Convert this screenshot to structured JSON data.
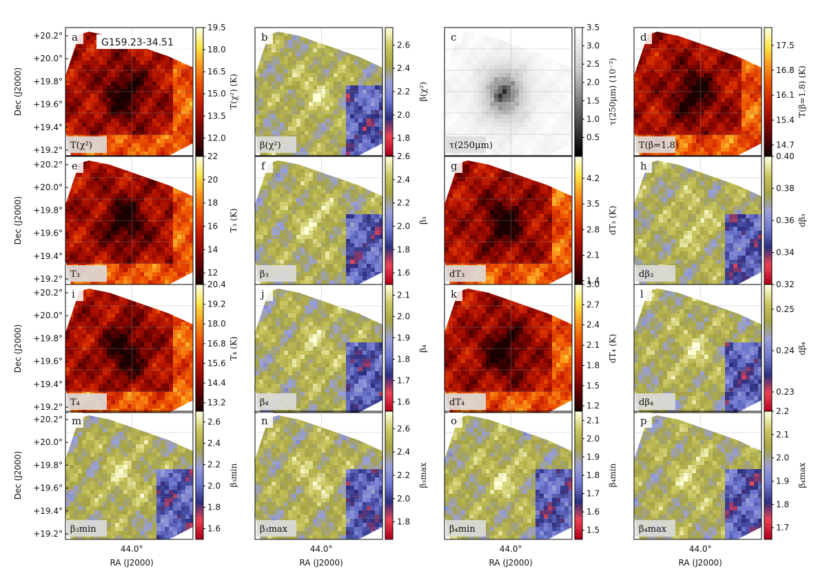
{
  "figure": {
    "title": "G159.23-34.51"
  },
  "axes": {
    "dec_ticks": [
      "+20.2°",
      "+20.0°",
      "+19.8°",
      "+19.6°",
      "+19.4°",
      "+19.2°"
    ],
    "ra_tick": "44.0°",
    "ylabel": "Dec (J2000)",
    "xlabel": "RA (J2000)"
  },
  "colors": {
    "hot": [
      "#1a0000",
      "#5a0000",
      "#9a0a00",
      "#cc2200",
      "#ee5500",
      "#fb9a1e",
      "#fde545",
      "#ffffe0"
    ],
    "div": [
      "#b2001a",
      "#ee4455",
      "#2b2f80",
      "#6f78d0",
      "#9aa0d8",
      "#a6a345",
      "#c9c65f",
      "#ffffd8"
    ],
    "gray": [
      "#000000",
      "#606060",
      "#c8c8c8",
      "#ffffff"
    ]
  },
  "chart_data": [
    {
      "type": "heatmap",
      "letter": "a",
      "label": "T(χ²)",
      "cbar_label": "T(χ²) (K)",
      "cmap": "hot",
      "ticks": [
        "19.5",
        "18.0",
        "16.5",
        "15.0",
        "13.5",
        "12.0"
      ],
      "range": [
        10.8,
        19.5
      ]
    },
    {
      "type": "heatmap",
      "letter": "b",
      "label": "β(χ²)",
      "cbar_label": "β(χ²)",
      "cmap": "div",
      "ticks": [
        "2.6",
        "2.4",
        "2.2",
        "2.0",
        "1.8"
      ],
      "range": [
        1.65,
        2.75
      ]
    },
    {
      "type": "heatmap",
      "letter": "c",
      "label": "τ(250μm)",
      "cbar_label": "τ(250μm) (10⁻³)",
      "cmap": "gray",
      "ticks": [
        "3.5",
        "3.0",
        "2.5",
        "2.0",
        "1.5",
        "1.0",
        "0.5"
      ],
      "range": [
        0.0,
        3.5
      ]
    },
    {
      "type": "heatmap",
      "letter": "d",
      "label": "T(β=1.8)",
      "cbar_label": "T(β=1.8) (K)",
      "cmap": "hot",
      "ticks": [
        "17.5",
        "16.8",
        "16.1",
        "15.4",
        "14.7"
      ],
      "range": [
        14.4,
        18.0
      ]
    },
    {
      "type": "heatmap",
      "letter": "e",
      "label": "T₃",
      "cbar_label": "T₃ (K)",
      "cmap": "hot",
      "ticks": [
        "22",
        "20",
        "18",
        "16",
        "14",
        "12"
      ],
      "range": [
        11,
        22
      ]
    },
    {
      "type": "heatmap",
      "letter": "f",
      "label": "β₃",
      "cbar_label": "β₃",
      "cmap": "div",
      "ticks": [
        "2.6",
        "2.4",
        "2.2",
        "2.0",
        "1.8",
        "1.6"
      ],
      "range": [
        1.5,
        2.6
      ]
    },
    {
      "type": "heatmap",
      "letter": "g",
      "label": "dT₃",
      "cbar_label": "dT₃ (K)",
      "cmap": "hot",
      "ticks": [
        "4.2",
        "3.5",
        "2.8",
        "2.1",
        "1.4"
      ],
      "range": [
        1.3,
        4.8
      ]
    },
    {
      "type": "heatmap",
      "letter": "h",
      "label": "dβ₃",
      "cbar_label": "dβ₃",
      "cmap": "div",
      "ticks": [
        "0.40",
        "0.38",
        "0.36",
        "0.34",
        "0.32"
      ],
      "range": [
        0.32,
        0.4
      ]
    },
    {
      "type": "heatmap",
      "letter": "i",
      "label": "T₄",
      "cbar_label": "T₄ (K)",
      "cmap": "hot",
      "ticks": [
        "20.4",
        "19.2",
        "18.0",
        "16.8",
        "15.6",
        "14.4",
        "13.2"
      ],
      "range": [
        12.6,
        20.4
      ]
    },
    {
      "type": "heatmap",
      "letter": "j",
      "label": "β₄",
      "cbar_label": "β₄",
      "cmap": "div",
      "ticks": [
        "2.1",
        "2.0",
        "1.9",
        "1.8",
        "1.7",
        "1.6"
      ],
      "range": [
        1.55,
        2.15
      ]
    },
    {
      "type": "heatmap",
      "letter": "k",
      "label": "dT₄",
      "cbar_label": "dT₄ (K)",
      "cmap": "hot",
      "ticks": [
        "3.0",
        "2.7",
        "2.4",
        "2.1",
        "1.8",
        "1.5",
        "1.2"
      ],
      "range": [
        1.1,
        3.0
      ]
    },
    {
      "type": "heatmap",
      "letter": "l",
      "label": "dβ₄",
      "cbar_label": "dβ₄",
      "cmap": "div",
      "ticks": [
        "0.25",
        "0.24",
        "0.23"
      ],
      "range": [
        0.225,
        0.256
      ]
    },
    {
      "type": "heatmap",
      "letter": "m",
      "label": "β₃min",
      "cbar_label": "β₃min",
      "cmap": "div",
      "ticks": [
        "2.6",
        "2.4",
        "2.2",
        "2.0",
        "1.8",
        "1.6"
      ],
      "range": [
        1.5,
        2.7
      ]
    },
    {
      "type": "heatmap",
      "letter": "n",
      "label": "β₃max",
      "cbar_label": "β₃max",
      "cmap": "div",
      "ticks": [
        "2.6",
        "2.4",
        "2.2",
        "2.0",
        "1.8"
      ],
      "range": [
        1.65,
        2.75
      ]
    },
    {
      "type": "heatmap",
      "letter": "o",
      "label": "β₄min",
      "cbar_label": "β₄min",
      "cmap": "div",
      "ticks": [
        "2.1",
        "2.0",
        "1.9",
        "1.8",
        "1.7",
        "1.6",
        "1.5"
      ],
      "range": [
        1.45,
        2.15
      ]
    },
    {
      "type": "heatmap",
      "letter": "p",
      "label": "β₄max",
      "cbar_label": "β₄max",
      "cmap": "div",
      "ticks": [
        "2.2",
        "2.1",
        "2.0",
        "1.9",
        "1.8",
        "1.7"
      ],
      "range": [
        1.65,
        2.2
      ]
    }
  ]
}
